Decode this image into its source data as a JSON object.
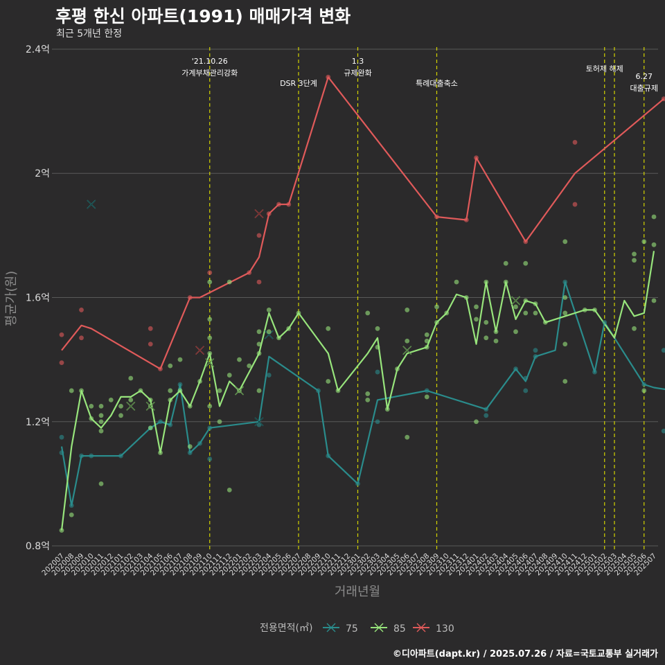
{
  "title": "후평 한신 아파트(1991) 매매가격 변화",
  "subtitle": "최근 5개년 한정",
  "caption": "©디아파트(dapt.kr) / 2025.07.26 / 자료=국토교통부 실거래가",
  "colors": {
    "background": "#2b2a2b",
    "grid": "#5a5a5a",
    "event_line": "#d4d400",
    "s75": "#2a8c8c",
    "s85": "#98e57c",
    "s130": "#e05a5a"
  },
  "chart_data": {
    "type": "line",
    "title": "후평 한신 아파트(1991) 매매가격 변화",
    "subtitle": "최근 5개년 한정",
    "xlabel": "거래년월",
    "ylabel": "평균가(원)",
    "ylim": [
      0.78,
      2.42
    ],
    "yticks": [
      0.8,
      1.2,
      1.6,
      2.0,
      2.4
    ],
    "ytick_labels": [
      "0.8억",
      "1.2억",
      "1.6억",
      "2억",
      "2.4억"
    ],
    "x_months": [
      "202007",
      "202008",
      "202009",
      "202010",
      "202011",
      "202012",
      "202101",
      "202102",
      "202103",
      "202104",
      "202105",
      "202106",
      "202107",
      "202108",
      "202109",
      "202110",
      "202111",
      "202112",
      "202201",
      "202202",
      "202203",
      "202204",
      "202205",
      "202206",
      "202207",
      "202208",
      "202209",
      "202210",
      "202211",
      "202212",
      "202301",
      "202302",
      "202303",
      "202304",
      "202305",
      "202306",
      "202307",
      "202308",
      "202309",
      "202310",
      "202311",
      "202312",
      "202401",
      "202402",
      "202403",
      "202404",
      "202405",
      "202406",
      "202407",
      "202408",
      "202409",
      "202410",
      "202411",
      "202412",
      "202501",
      "202502",
      "202503",
      "202504",
      "202505",
      "202506",
      "202507"
    ],
    "legend_title": "전용면적(㎡)",
    "legend_position": "bottom",
    "grid": true,
    "series": [
      {
        "name": "75",
        "color": "#2a8c8c",
        "line": [
          [
            0,
            1.12
          ],
          [
            1,
            0.93
          ],
          [
            2,
            1.09
          ],
          [
            3,
            1.09
          ],
          [
            6,
            1.09
          ],
          [
            9,
            1.18
          ],
          [
            10,
            1.2
          ],
          [
            11,
            1.19
          ],
          [
            12,
            1.32
          ],
          [
            13,
            1.1
          ],
          [
            14,
            1.13
          ],
          [
            15,
            1.18
          ],
          [
            20,
            1.2
          ],
          [
            21,
            1.41
          ],
          [
            26,
            1.3
          ],
          [
            27,
            1.09
          ],
          [
            30,
            1.0
          ],
          [
            32,
            1.27
          ],
          [
            37,
            1.3
          ],
          [
            43,
            1.24
          ],
          [
            46,
            1.37
          ],
          [
            47,
            1.33
          ],
          [
            48,
            1.41
          ],
          [
            50,
            1.43
          ],
          [
            51,
            1.65
          ],
          [
            54,
            1.36
          ],
          [
            55,
            1.52
          ],
          [
            59,
            1.32
          ],
          [
            60,
            1.31
          ],
          [
            62,
            1.3
          ]
        ],
        "points": [
          [
            0,
            1.15
          ],
          [
            0,
            1.1
          ],
          [
            1,
            0.93
          ],
          [
            2,
            1.09
          ],
          [
            3,
            1.09
          ],
          [
            6,
            1.09
          ],
          [
            9,
            1.18
          ],
          [
            10,
            1.2
          ],
          [
            11,
            1.19
          ],
          [
            12,
            1.32
          ],
          [
            13,
            1.1
          ],
          [
            14,
            1.13
          ],
          [
            15,
            1.08
          ],
          [
            15,
            1.18
          ],
          [
            20,
            1.19
          ],
          [
            21,
            1.35
          ],
          [
            26,
            1.3
          ],
          [
            27,
            1.09
          ],
          [
            30,
            1.0
          ],
          [
            32,
            1.2
          ],
          [
            32,
            1.36
          ],
          [
            37,
            1.3
          ],
          [
            43,
            1.22
          ],
          [
            43,
            1.24
          ],
          [
            46,
            1.37
          ],
          [
            47,
            1.3
          ],
          [
            47,
            1.34
          ],
          [
            48,
            1.41
          ],
          [
            48,
            1.43
          ],
          [
            51,
            1.65
          ],
          [
            54,
            1.36
          ],
          [
            55,
            1.52
          ],
          [
            59,
            1.32
          ],
          [
            61,
            1.43
          ],
          [
            61,
            1.17
          ]
        ],
        "crosses": [
          [
            3,
            1.9
          ],
          [
            20,
            1.2
          ],
          [
            21,
            1.48
          ]
        ]
      },
      {
        "name": "85",
        "color": "#98e57c",
        "line": [
          [
            0,
            0.85
          ],
          [
            1,
            1.12
          ],
          [
            2,
            1.3
          ],
          [
            3,
            1.21
          ],
          [
            4,
            1.18
          ],
          [
            5,
            1.22
          ],
          [
            6,
            1.28
          ],
          [
            7,
            1.28
          ],
          [
            8,
            1.3
          ],
          [
            9,
            1.27
          ],
          [
            10,
            1.1
          ],
          [
            11,
            1.27
          ],
          [
            12,
            1.3
          ],
          [
            13,
            1.25
          ],
          [
            14,
            1.33
          ],
          [
            15,
            1.42
          ],
          [
            16,
            1.25
          ],
          [
            17,
            1.33
          ],
          [
            18,
            1.3
          ],
          [
            19,
            1.36
          ],
          [
            20,
            1.42
          ],
          [
            21,
            1.55
          ],
          [
            22,
            1.47
          ],
          [
            23,
            1.5
          ],
          [
            24,
            1.55
          ],
          [
            27,
            1.42
          ],
          [
            28,
            1.3
          ],
          [
            31,
            1.42
          ],
          [
            32,
            1.47
          ],
          [
            33,
            1.24
          ],
          [
            34,
            1.37
          ],
          [
            35,
            1.42
          ],
          [
            37,
            1.44
          ],
          [
            38,
            1.52
          ],
          [
            39,
            1.55
          ],
          [
            40,
            1.61
          ],
          [
            41,
            1.6
          ],
          [
            42,
            1.45
          ],
          [
            43,
            1.65
          ],
          [
            44,
            1.49
          ],
          [
            45,
            1.65
          ],
          [
            46,
            1.53
          ],
          [
            47,
            1.59
          ],
          [
            48,
            1.58
          ],
          [
            49,
            1.52
          ],
          [
            53,
            1.56
          ],
          [
            54,
            1.56
          ],
          [
            56,
            1.47
          ],
          [
            57,
            1.59
          ],
          [
            58,
            1.54
          ],
          [
            59,
            1.55
          ],
          [
            60,
            1.75
          ]
        ],
        "points": [
          [
            0,
            0.85
          ],
          [
            1,
            0.9
          ],
          [
            1,
            1.3
          ],
          [
            2,
            1.3
          ],
          [
            3,
            1.21
          ],
          [
            3,
            1.25
          ],
          [
            4,
            1.17
          ],
          [
            4,
            1.2
          ],
          [
            4,
            1.22
          ],
          [
            4,
            1.25
          ],
          [
            4,
            1.0
          ],
          [
            5,
            1.27
          ],
          [
            6,
            1.22
          ],
          [
            6,
            1.25
          ],
          [
            7,
            1.27
          ],
          [
            7,
            1.34
          ],
          [
            8,
            1.3
          ],
          [
            9,
            1.25
          ],
          [
            9,
            1.27
          ],
          [
            9,
            1.18
          ],
          [
            10,
            1.1
          ],
          [
            11,
            1.27
          ],
          [
            11,
            1.3
          ],
          [
            11,
            1.38
          ],
          [
            12,
            1.3
          ],
          [
            12,
            1.4
          ],
          [
            13,
            1.25
          ],
          [
            13,
            1.12
          ],
          [
            14,
            1.33
          ],
          [
            15,
            1.65
          ],
          [
            15,
            1.53
          ],
          [
            15,
            1.47
          ],
          [
            15,
            1.42
          ],
          [
            15,
            1.25
          ],
          [
            16,
            1.3
          ],
          [
            16,
            1.2
          ],
          [
            17,
            1.65
          ],
          [
            17,
            1.35
          ],
          [
            17,
            0.98
          ],
          [
            18,
            1.4
          ],
          [
            18,
            1.3
          ],
          [
            19,
            1.38
          ],
          [
            20,
            1.49
          ],
          [
            20,
            1.45
          ],
          [
            20,
            1.42
          ],
          [
            20,
            1.3
          ],
          [
            21,
            1.56
          ],
          [
            21,
            1.49
          ],
          [
            22,
            1.47
          ],
          [
            23,
            1.5
          ],
          [
            24,
            1.55
          ],
          [
            27,
            1.5
          ],
          [
            27,
            1.33
          ],
          [
            28,
            1.3
          ],
          [
            31,
            1.55
          ],
          [
            31,
            1.29
          ],
          [
            31,
            1.27
          ],
          [
            32,
            1.5
          ],
          [
            32,
            1.44
          ],
          [
            33,
            1.24
          ],
          [
            34,
            1.37
          ],
          [
            35,
            1.56
          ],
          [
            35,
            1.46
          ],
          [
            35,
            1.15
          ],
          [
            37,
            1.48
          ],
          [
            37,
            1.46
          ],
          [
            37,
            1.44
          ],
          [
            37,
            1.28
          ],
          [
            38,
            1.57
          ],
          [
            38,
            1.52
          ],
          [
            39,
            1.55
          ],
          [
            40,
            1.65
          ],
          [
            41,
            1.6
          ],
          [
            42,
            1.57
          ],
          [
            42,
            1.53
          ],
          [
            42,
            1.2
          ],
          [
            43,
            1.65
          ],
          [
            43,
            1.47
          ],
          [
            43,
            1.52
          ],
          [
            44,
            1.49
          ],
          [
            44,
            1.46
          ],
          [
            45,
            1.71
          ],
          [
            45,
            1.65
          ],
          [
            46,
            1.57
          ],
          [
            46,
            1.49
          ],
          [
            47,
            1.71
          ],
          [
            47,
            1.59
          ],
          [
            47,
            1.55
          ],
          [
            48,
            1.58
          ],
          [
            48,
            1.55
          ],
          [
            49,
            1.52
          ],
          [
            51,
            1.78
          ],
          [
            51,
            1.6
          ],
          [
            51,
            1.55
          ],
          [
            51,
            1.45
          ],
          [
            51,
            1.33
          ],
          [
            53,
            1.56
          ],
          [
            54,
            1.56
          ],
          [
            58,
            1.74
          ],
          [
            58,
            1.72
          ],
          [
            58,
            1.5
          ],
          [
            59,
            1.78
          ],
          [
            59,
            1.3
          ],
          [
            60,
            1.86
          ],
          [
            60,
            1.77
          ],
          [
            60,
            1.59
          ]
        ],
        "crosses": [
          [
            15,
            1.39
          ],
          [
            18,
            1.3
          ],
          [
            35,
            1.43
          ],
          [
            46,
            1.59
          ],
          [
            7,
            1.25
          ],
          [
            9,
            1.25
          ]
        ]
      },
      {
        "name": "130",
        "color": "#e05a5a",
        "line": [
          [
            0,
            1.43
          ],
          [
            2,
            1.51
          ],
          [
            3,
            1.5
          ],
          [
            10,
            1.37
          ],
          [
            13,
            1.6
          ],
          [
            14,
            1.6
          ],
          [
            19,
            1.68
          ],
          [
            20,
            1.73
          ],
          [
            21,
            1.87
          ],
          [
            22,
            1.9
          ],
          [
            23,
            1.9
          ],
          [
            27,
            2.31
          ],
          [
            38,
            1.86
          ],
          [
            41,
            1.85
          ],
          [
            42,
            2.05
          ],
          [
            47,
            1.78
          ],
          [
            52,
            2.0
          ],
          [
            61,
            2.24
          ]
        ],
        "points": [
          [
            0,
            1.48
          ],
          [
            0,
            1.39
          ],
          [
            2,
            1.56
          ],
          [
            2,
            1.47
          ],
          [
            9,
            1.5
          ],
          [
            9,
            1.45
          ],
          [
            10,
            1.37
          ],
          [
            13,
            1.6
          ],
          [
            15,
            1.68
          ],
          [
            19,
            1.68
          ],
          [
            20,
            1.8
          ],
          [
            20,
            1.65
          ],
          [
            21,
            1.87
          ],
          [
            22,
            1.9
          ],
          [
            23,
            1.9
          ],
          [
            27,
            2.31
          ],
          [
            38,
            1.86
          ],
          [
            41,
            1.85
          ],
          [
            42,
            2.05
          ],
          [
            47,
            1.78
          ],
          [
            52,
            2.1
          ],
          [
            52,
            1.9
          ],
          [
            61,
            2.24
          ]
        ],
        "crosses": [
          [
            20,
            1.87
          ],
          [
            14,
            1.43
          ]
        ]
      }
    ],
    "events": [
      {
        "x": 15,
        "lines": [
          "'21.10.26",
          "가계부채관리강화"
        ],
        "level": 0
      },
      {
        "x": 24,
        "lines": [
          "DSR 3단계"
        ],
        "level": 2
      },
      {
        "x": 30,
        "lines": [
          "1.3",
          "규제완화"
        ],
        "level": 0
      },
      {
        "x": 38,
        "lines": [
          "특례대출축소"
        ],
        "level": 2
      },
      {
        "x": 55,
        "lines": [
          "토허제 해제"
        ],
        "level": 1
      },
      {
        "x": 56,
        "lines": [],
        "level": 1
      },
      {
        "x": 59,
        "lines": [
          "6.27",
          "대출규제"
        ],
        "level": 1
      }
    ]
  }
}
